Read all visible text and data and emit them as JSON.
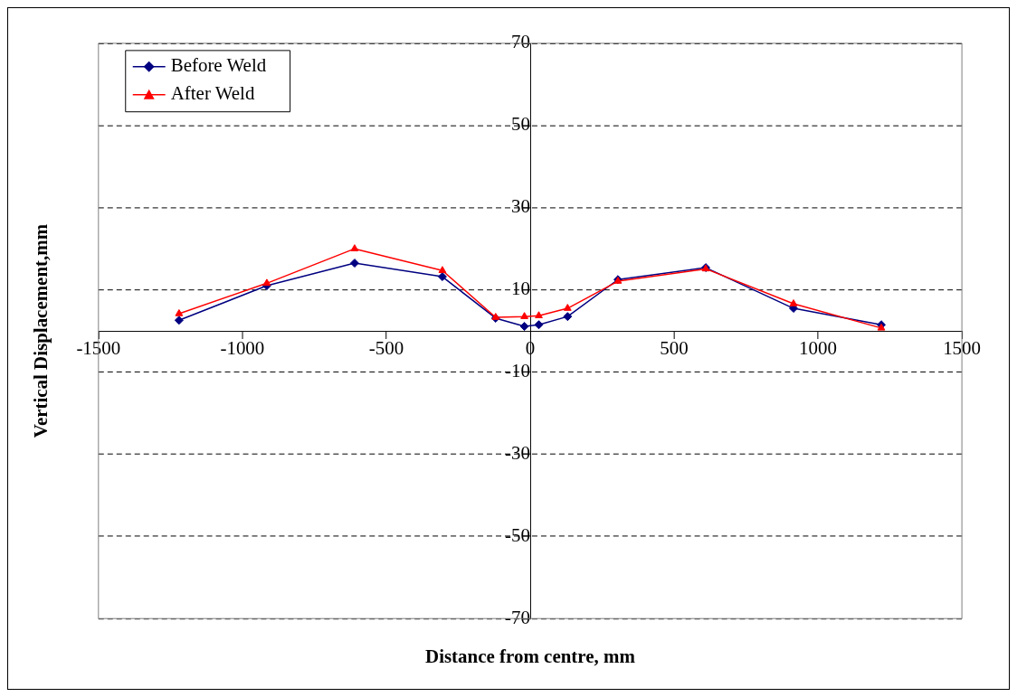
{
  "chart_data": {
    "type": "line",
    "xlabel": "Distance from centre, mm",
    "ylabel": "Vertical Displacement,mm",
    "x": [
      -1220,
      -915,
      -610,
      -305,
      -120,
      -20,
      30,
      130,
      305,
      610,
      915,
      1220
    ],
    "series": [
      {
        "name": "Before Weld",
        "color": "#000080",
        "marker": "diamond",
        "values": [
          2.6,
          11.0,
          16.5,
          13.2,
          3.1,
          1.1,
          1.5,
          3.5,
          12.5,
          15.4,
          5.5,
          1.5
        ]
      },
      {
        "name": "After Weld",
        "color": "#ff0000",
        "marker": "triangle",
        "values": [
          4.2,
          11.6,
          20.0,
          14.7,
          3.3,
          3.5,
          3.7,
          5.5,
          12.1,
          15.1,
          6.6,
          0.7
        ]
      }
    ],
    "xlim": [
      -1500,
      1500
    ],
    "xticks": [
      -1500,
      -1000,
      -500,
      0,
      500,
      1000,
      1500
    ],
    "ylim": [
      -70,
      70
    ],
    "yticks": [
      -70,
      -50,
      -30,
      -10,
      10,
      30,
      50,
      70
    ],
    "grid": "y",
    "line_style": "solid",
    "legend": "top left"
  }
}
